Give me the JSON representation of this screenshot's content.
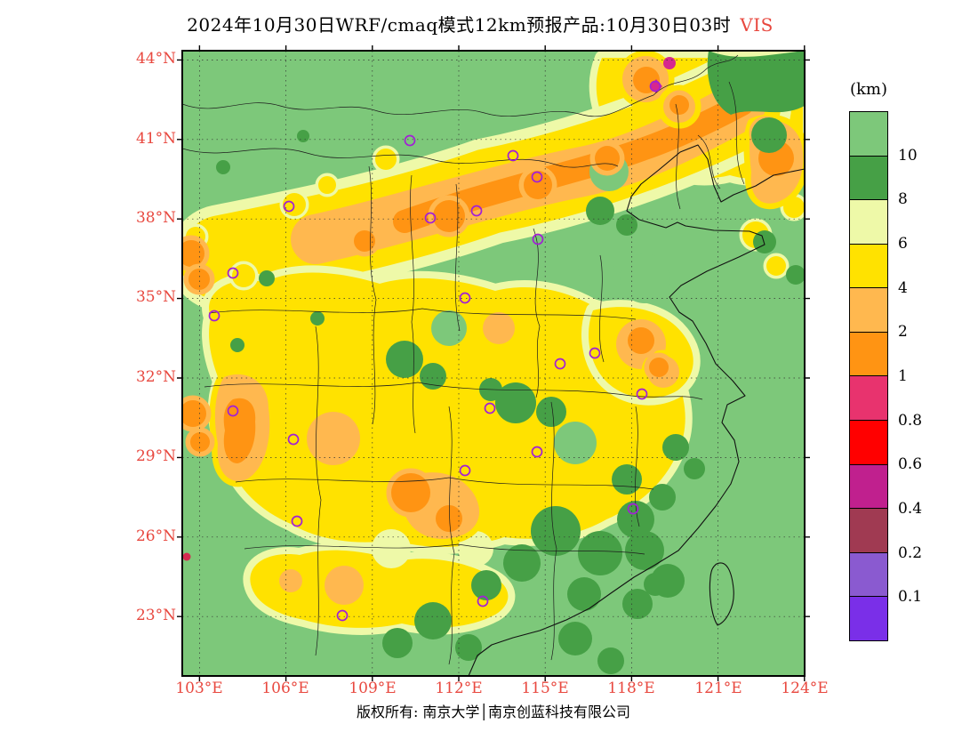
{
  "title": {
    "main": "2024年10月30日WRF/cmaq模式12km预报产品:10月30日03时",
    "product": "VIS"
  },
  "axes": {
    "lat_labels": [
      "44°N",
      "41°N",
      "38°N",
      "35°N",
      "32°N",
      "29°N",
      "26°N",
      "23°N"
    ],
    "lon_labels": [
      "103°E",
      "106°E",
      "109°E",
      "112°E",
      "115°E",
      "118°E",
      "121°E",
      "124°E"
    ]
  },
  "legend": {
    "title": "(km)",
    "tick_labels": [
      "10",
      "8",
      "6",
      "4",
      "2",
      "1",
      "0.8",
      "0.6",
      "0.4",
      "0.2",
      "0.1"
    ],
    "colors": [
      "#7dc87a",
      "#46a046",
      "#eef9a8",
      "#ffe200",
      "#ffb84f",
      "#ff9413",
      "#e8336e",
      "#ff0000",
      "#c0208e",
      "#a03a52",
      "#8a5ad0",
      "#7a2fe8"
    ]
  },
  "palette": {
    "base": "#7dc87a",
    "dark_green": "#46a046",
    "pale_yellow": "#eef9a8",
    "yellow": "#ffe200",
    "light_orange": "#ffb84f",
    "orange": "#ff9413",
    "magenta": "#d6278e",
    "crimson": "#d42a50",
    "marker": "#a21fd6",
    "axis_label": "#e8483f"
  },
  "map": {
    "markers": [
      [
        256,
        101
      ],
      [
        372,
        118
      ],
      [
        399,
        142
      ],
      [
        120,
        175
      ],
      [
        279,
        188
      ],
      [
        331,
        180
      ],
      [
        400,
        212
      ],
      [
        57,
        250
      ],
      [
        318,
        278
      ],
      [
        36,
        298
      ],
      [
        464,
        340
      ],
      [
        425,
        352
      ],
      [
        517,
        386
      ],
      [
        57,
        405
      ],
      [
        346,
        402
      ],
      [
        125,
        437
      ],
      [
        399,
        451
      ],
      [
        318,
        472
      ],
      [
        507,
        515
      ],
      [
        129,
        529
      ],
      [
        338,
        619
      ],
      [
        180,
        635
      ],
      [
        532,
        40
      ]
    ]
  },
  "footer": {
    "text": "版权所有: 南京大学│南京创蓝科技有限公司"
  }
}
